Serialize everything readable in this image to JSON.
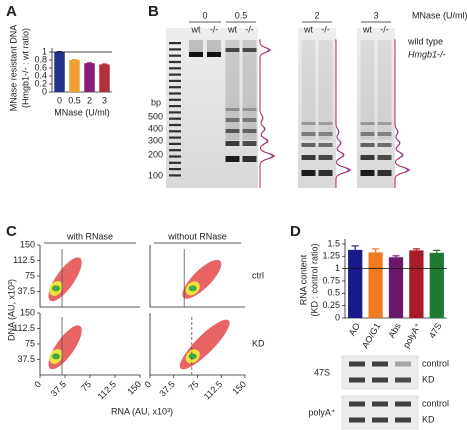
{
  "panel_labels": [
    "A",
    "B",
    "C",
    "D"
  ],
  "chart_data": [
    {
      "type": "bar",
      "ylabel_lines": [
        "MNase resistant DNA",
        "(Hmgb1-/- : wt ratio)"
      ],
      "xlabel": "MNase (U/ml)",
      "categories": [
        "0",
        "0.5",
        "2",
        "3"
      ],
      "values": [
        1.0,
        0.8,
        0.72,
        0.69
      ],
      "errors": [
        0.01,
        0.01,
        0.01,
        0.01
      ],
      "colors": [
        "#24348c",
        "#f0a030",
        "#8a1b78",
        "#b3303a"
      ],
      "ylim": [
        0,
        1.1
      ],
      "yticks": [
        0,
        0.2,
        0.4,
        0.6,
        0.8,
        1
      ],
      "reference_line": 1
    },
    {
      "type": "bar",
      "ylabel_lines": [
        "RNA content",
        "(KD : control ratio)"
      ],
      "categories": [
        "AO",
        "AO/G1",
        "Abs",
        "polyA⁺",
        "47S"
      ],
      "values": [
        1.38,
        1.33,
        1.23,
        1.37,
        1.32
      ],
      "errors": [
        0.08,
        0.07,
        0.03,
        0.03,
        0.05
      ],
      "colors": [
        "#1a1a8c",
        "#f07a20",
        "#6a1a6a",
        "#a81c28",
        "#1e7a30"
      ],
      "ylim": [
        0,
        1.6
      ],
      "yticks": [
        0,
        0.25,
        0.5,
        0.75,
        1,
        1.25,
        1.5
      ],
      "reference_line": 1
    }
  ],
  "gel_b": {
    "header": "MNase (U/ml)",
    "mw": "MW",
    "bp": "bp",
    "bp_labels": [
      "500",
      "400",
      "300",
      "200",
      "100"
    ],
    "doses": [
      "0",
      "0.5",
      "2",
      "3"
    ],
    "genotypes": [
      "wt",
      "-/-"
    ],
    "legend": [
      {
        "name": "wild type",
        "color": "#2b3bd0"
      },
      {
        "name": "Hmgb1-/-",
        "color": "#d0204a"
      }
    ]
  },
  "flow_c": {
    "columns": [
      "with RNase",
      "without RNase"
    ],
    "rows": [
      "ctrl",
      "KD"
    ],
    "xlabel": "RNA (AU, x10³)",
    "ylabel": "DNA (AU, x10³)",
    "xlim": [
      0,
      150
    ],
    "ylim": [
      0,
      150
    ],
    "xticks": [
      0,
      37.5,
      75,
      112.5,
      150
    ],
    "yticks": [
      37.5,
      75,
      112.5,
      150
    ]
  },
  "gel_d": {
    "rows": [
      {
        "label": "47S",
        "lanes": [
          "control",
          "KD"
        ]
      },
      {
        "label": "polyA⁺",
        "lanes": [
          "control",
          "KD"
        ]
      }
    ]
  }
}
